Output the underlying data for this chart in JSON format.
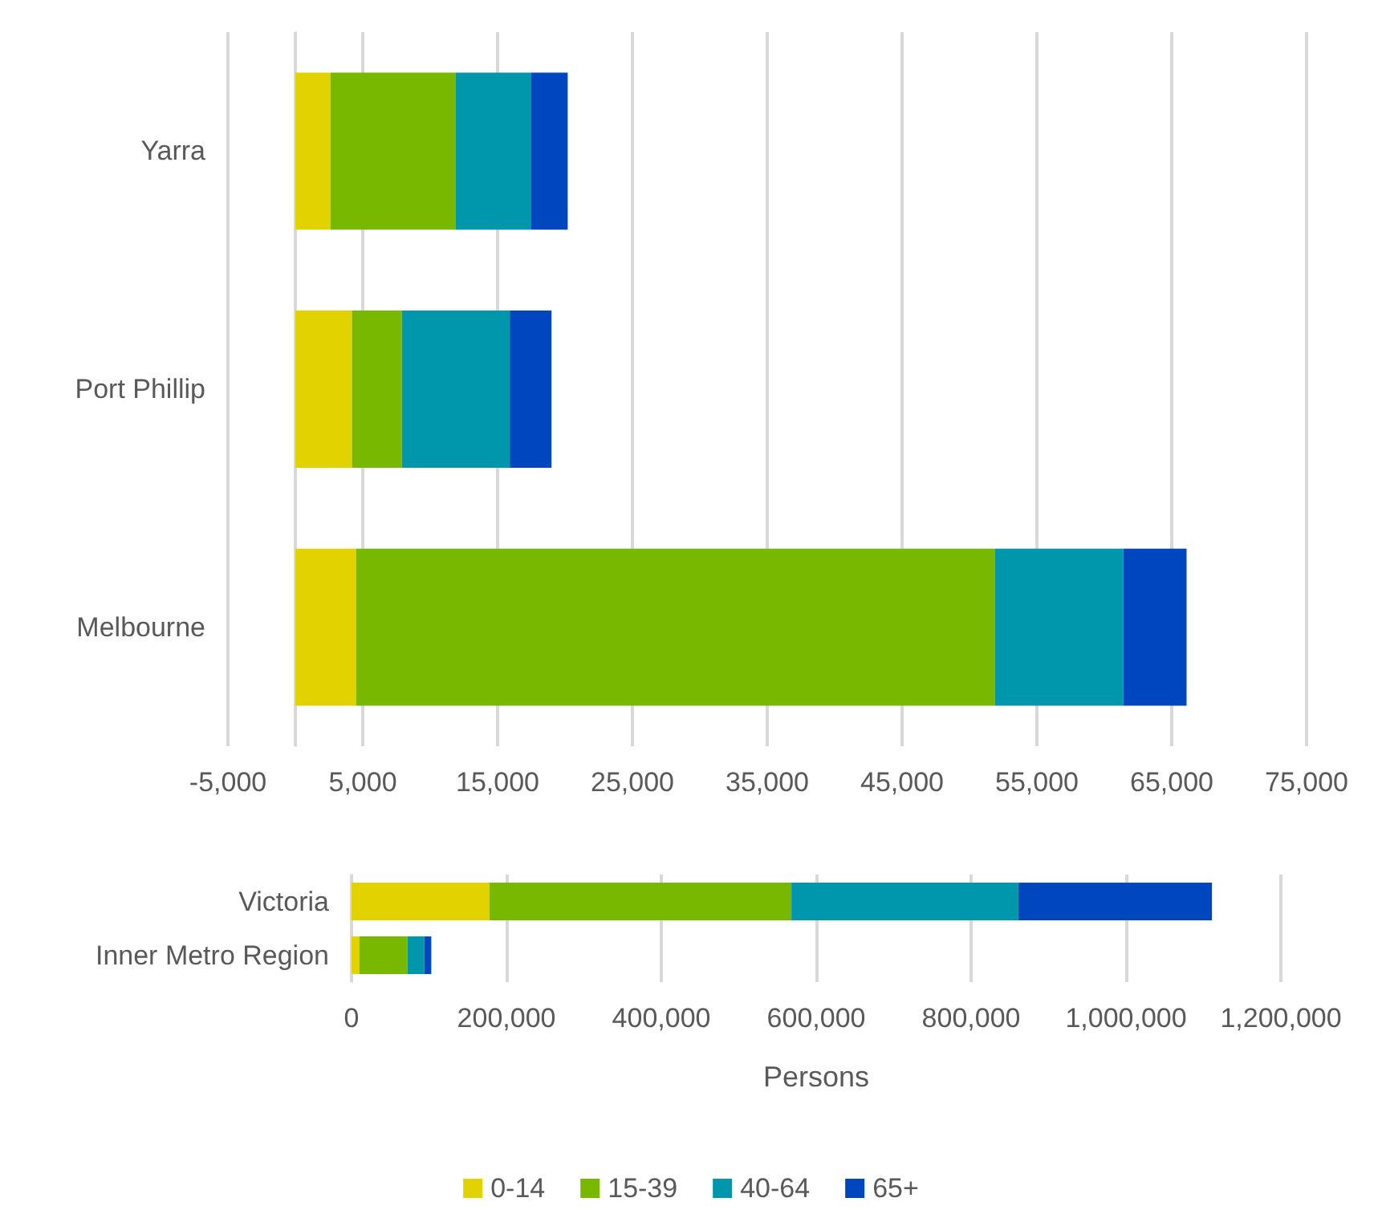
{
  "chart_data": [
    {
      "type": "bar",
      "orientation": "horizontal",
      "stacked": true,
      "categories": [
        "Yarra",
        "Port Phillip",
        "Melbourne"
      ],
      "series": [
        {
          "color": "#e2d200",
          "values": [
            2600,
            4200,
            4500
          ]
        },
        {
          "color": "#78b800",
          "values": [
            9300,
            3700,
            47400
          ]
        },
        {
          "color": "#0097ad",
          "values": [
            5600,
            8000,
            9500
          ]
        },
        {
          "color": "#0047bf",
          "values": [
            2700,
            3100,
            4700
          ]
        }
      ],
      "xlim": [
        -5000,
        75000
      ],
      "xticks": [
        {
          "value": -5000,
          "label": "-5,000"
        },
        {
          "value": 0,
          "label": null
        },
        {
          "value": 5000,
          "label": "5,000"
        },
        {
          "value": 15000,
          "label": "15,000"
        },
        {
          "value": 25000,
          "label": "25,000"
        },
        {
          "value": 35000,
          "label": "35,000"
        },
        {
          "value": 45000,
          "label": "45,000"
        },
        {
          "value": 55000,
          "label": "55,000"
        },
        {
          "value": 65000,
          "label": "65,000"
        },
        {
          "value": 75000,
          "label": "75,000"
        }
      ],
      "grid": "x",
      "legend": false
    },
    {
      "type": "bar",
      "orientation": "horizontal",
      "stacked": true,
      "categories": [
        "Victoria",
        "Inner Metro Region"
      ],
      "xlabel": "Persons",
      "series": [
        {
          "name": "0-14",
          "color": "#e2d200",
          "values": [
            178000,
            10000
          ]
        },
        {
          "name": "15-39",
          "color": "#78b800",
          "values": [
            390000,
            62000
          ]
        },
        {
          "name": "40-64",
          "color": "#0097ad",
          "values": [
            293000,
            22000
          ]
        },
        {
          "name": "65+",
          "color": "#0047bf",
          "values": [
            250000,
            9000
          ]
        }
      ],
      "xlim": [
        0,
        1200000
      ],
      "xticks": [
        0,
        {
          "value": 200000,
          "label": "200,000"
        },
        {
          "value": 400000,
          "label": "400,000"
        },
        {
          "value": 600000,
          "label": "600,000"
        },
        {
          "value": 800000,
          "label": "800,000"
        },
        {
          "value": 1000000,
          "label": "1,000,000"
        },
        {
          "value": 1200000,
          "label": "1,200,000"
        }
      ],
      "grid": "x",
      "legend": "bottom"
    }
  ]
}
